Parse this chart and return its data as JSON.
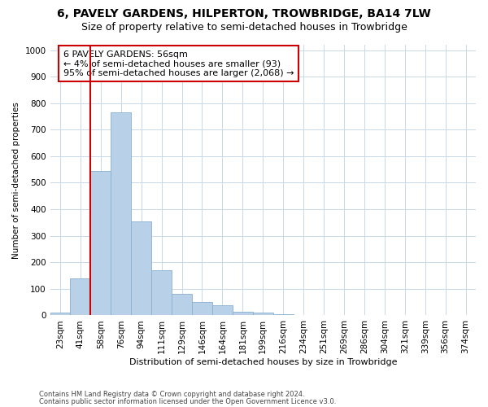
{
  "title": "6, PAVELY GARDENS, HILPERTON, TROWBRIDGE, BA14 7LW",
  "subtitle": "Size of property relative to semi-detached houses in Trowbridge",
  "xlabel": "Distribution of semi-detached houses by size in Trowbridge",
  "ylabel": "Number of semi-detached properties",
  "footnote1": "Contains HM Land Registry data © Crown copyright and database right 2024.",
  "footnote2": "Contains public sector information licensed under the Open Government Licence v3.0.",
  "categories": [
    "23sqm",
    "41sqm",
    "58sqm",
    "76sqm",
    "94sqm",
    "111sqm",
    "129sqm",
    "146sqm",
    "164sqm",
    "181sqm",
    "199sqm",
    "216sqm",
    "234sqm",
    "251sqm",
    "269sqm",
    "286sqm",
    "304sqm",
    "321sqm",
    "339sqm",
    "356sqm",
    "374sqm"
  ],
  "values": [
    10,
    140,
    545,
    765,
    355,
    170,
    80,
    52,
    37,
    15,
    10,
    5,
    2,
    0,
    0,
    0,
    0,
    0,
    0,
    0,
    0
  ],
  "bar_color": "#b8d0e8",
  "bar_edgecolor": "#8ab0d0",
  "annotation_line1": "6 PAVELY GARDENS: 56sqm",
  "annotation_line2": "← 4% of semi-detached houses are smaller (93)",
  "annotation_line3": "95% of semi-detached houses are larger (2,068) →",
  "annotation_box_facecolor": "#ffffff",
  "annotation_box_edgecolor": "#cc0000",
  "vline_color": "#cc0000",
  "vline_x": 1.5,
  "ylim": [
    0,
    1020
  ],
  "yticks": [
    0,
    100,
    200,
    300,
    400,
    500,
    600,
    700,
    800,
    900,
    1000
  ],
  "grid_color": "#c8d8e8",
  "background_color": "#ffffff",
  "title_fontsize": 10,
  "subtitle_fontsize": 9,
  "xlabel_fontsize": 8,
  "ylabel_fontsize": 7.5,
  "tick_fontsize": 7.5,
  "annot_fontsize": 8
}
